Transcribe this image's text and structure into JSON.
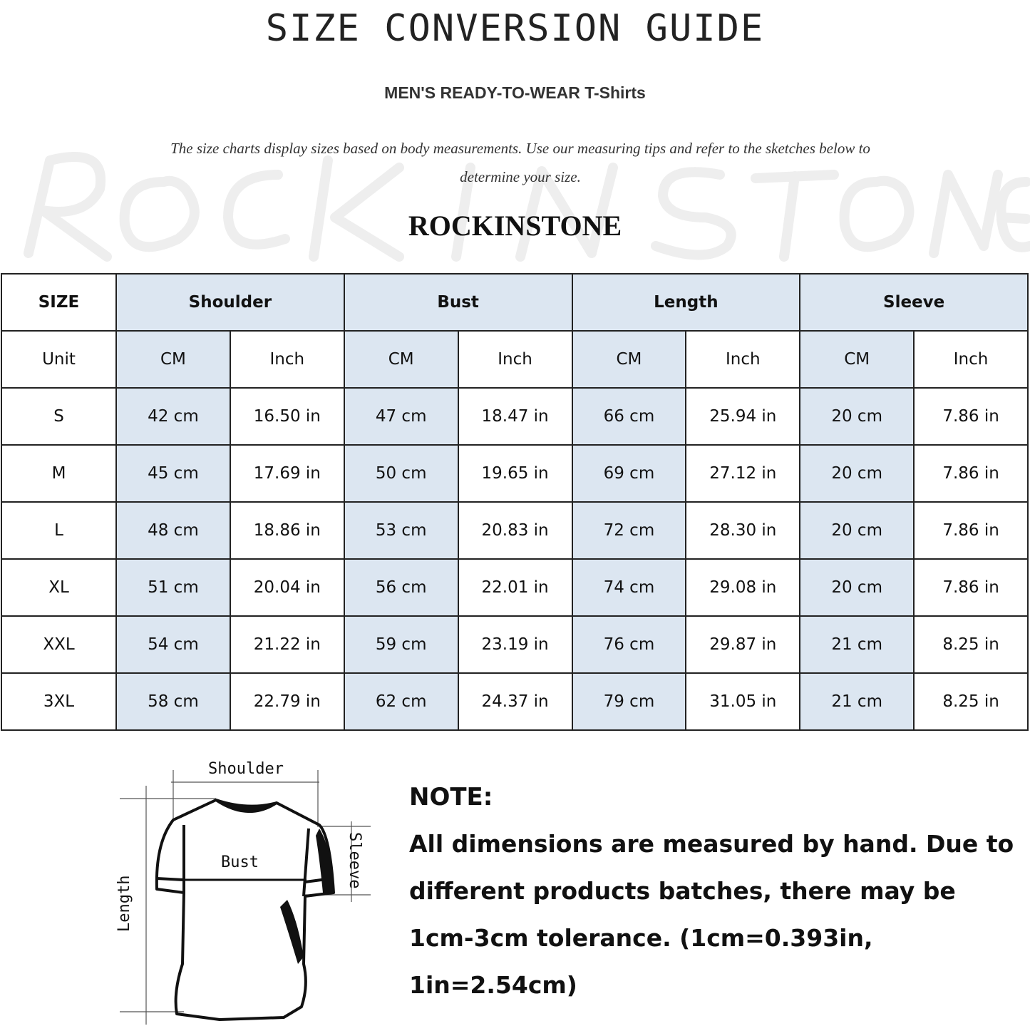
{
  "header": {
    "title": "SIZE CONVERSION GUIDE",
    "subtitle": "MEN'S READY-TO-WEAR T-Shirts",
    "description": "The size charts display sizes based on body measurements. Use our measuring tips and refer to the sketches below to determine your size.",
    "brand": "ROCKINSTONE",
    "watermark": "ROCK IN STONE"
  },
  "colors": {
    "header_fill": "#dce6f1",
    "border": "#222222"
  },
  "table": {
    "size_header": "SIZE",
    "groups": [
      "Shoulder",
      "Bust",
      "Length",
      "Sleeve"
    ],
    "unit_label": "Unit",
    "units": [
      "CM",
      "Inch",
      "CM",
      "Inch",
      "CM",
      "Inch",
      "CM",
      "Inch"
    ],
    "rows": [
      {
        "size": "S",
        "values": [
          "42 cm",
          "16.50 in",
          "47 cm",
          "18.47  in",
          "66 cm",
          "25.94  in",
          "20 cm",
          "7.86  in"
        ]
      },
      {
        "size": "M",
        "values": [
          "45 cm",
          "17.69  in",
          "50 cm",
          "19.65  in",
          "69 cm",
          "27.12  in",
          "20 cm",
          "7.86  in"
        ]
      },
      {
        "size": "L",
        "values": [
          "48 cm",
          "18.86  in",
          "53 cm",
          "20.83  in",
          "72 cm",
          "28.30  in",
          "20 cm",
          "7.86  in"
        ]
      },
      {
        "size": "XL",
        "values": [
          "51 cm",
          "20.04  in",
          "56 cm",
          "22.01  in",
          "74 cm",
          "29.08  in",
          "20 cm",
          "7.86  in"
        ]
      },
      {
        "size": "XXL",
        "values": [
          "54 cm",
          "21.22  in",
          "59 cm",
          "23.19  in",
          "76 cm",
          "29.87  in",
          "21 cm",
          "8.25  in"
        ]
      },
      {
        "size": "3XL",
        "values": [
          "58 cm",
          "22.79  in",
          "62 cm",
          "24.37  in",
          "79 cm",
          "31.05  in",
          "21 cm",
          "8.25  in"
        ]
      }
    ]
  },
  "diagram": {
    "shoulder": "Shoulder",
    "bust": "Bust",
    "sleeve": "Sleeve",
    "length": "Length"
  },
  "note": {
    "title": "NOTE:",
    "text": "All dimensions are measured by hand. Due to different products batches, there may be 1cm-3cm tolerance. (1cm=0.393in, 1in=2.54cm)"
  }
}
